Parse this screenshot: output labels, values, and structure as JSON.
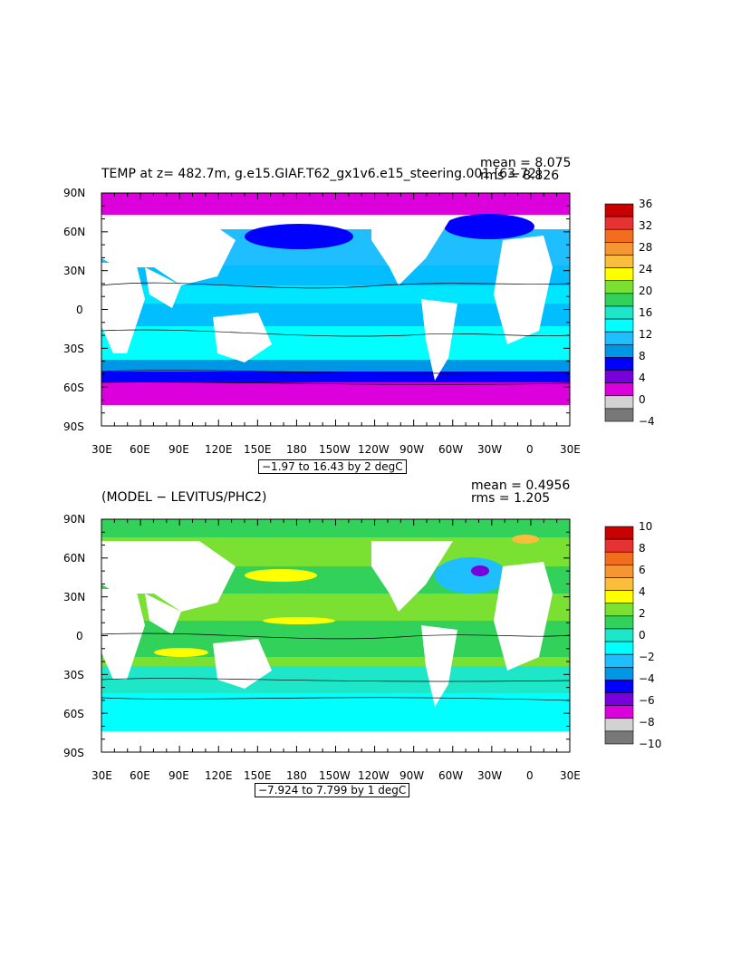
{
  "maps": [
    {
      "title": "TEMP at z= 482.7m, g.e15.GIAF.T62_gx1v6.e15_steering.001 [63-72]",
      "stat_mean": "mean = 8.075",
      "stat_rms": "rms = 8.826",
      "range_label": "−1.97 to 16.43 by 2 degC",
      "lat_labels": [
        "90N",
        "60N",
        "30N",
        "0",
        "30S",
        "60S",
        "90S"
      ],
      "lon_labels": [
        "30E",
        "60E",
        "90E",
        "120E",
        "150E",
        "180",
        "150W",
        "120W",
        "90W",
        "60W",
        "30W",
        "0",
        "30E"
      ],
      "colorbar_labels": [
        "36",
        "32",
        "28",
        "24",
        "20",
        "16",
        "12",
        "8",
        "4",
        "0",
        "−4"
      ],
      "colorbar_colors": [
        "#c80000",
        "#e63232",
        "#f06e1e",
        "#f59632",
        "#fabe3c",
        "#ffff00",
        "#7ae032",
        "#32d25a",
        "#1ee6c8",
        "#00ffff",
        "#1ebeff",
        "#0096e6",
        "#0000ff",
        "#7800dc",
        "#dc00dc",
        "#d2d2d2",
        "#787878"
      ]
    },
    {
      "title": "(MODEL − LEVITUS/PHC2)",
      "stat_mean": "mean = 0.4956",
      "stat_rms": "rms = 1.205",
      "range_label": "−7.924 to 7.799 by 1 degC",
      "lat_labels": [
        "90N",
        "60N",
        "30N",
        "0",
        "30S",
        "60S",
        "90S"
      ],
      "lon_labels": [
        "30E",
        "60E",
        "90E",
        "120E",
        "150E",
        "180",
        "150W",
        "120W",
        "90W",
        "60W",
        "30W",
        "0",
        "30E"
      ],
      "colorbar_labels": [
        "10",
        "8",
        "6",
        "4",
        "2",
        "0",
        "−2",
        "−4",
        "−6",
        "−8",
        "−10"
      ],
      "colorbar_colors": [
        "#c80000",
        "#e63232",
        "#f06e1e",
        "#f59632",
        "#fabe3c",
        "#ffff00",
        "#7ae032",
        "#32d25a",
        "#1ee6c8",
        "#00ffff",
        "#1ebeff",
        "#0096e6",
        "#0000ff",
        "#7800dc",
        "#dc00dc",
        "#d2d2d2",
        "#787878"
      ]
    }
  ],
  "chart_data": [
    {
      "type": "heatmap",
      "title": "TEMP at z= 482.7m, g.e15.GIAF.T62_gx1v6.e15_steering.001 [63-72]",
      "xlim": [
        "30E",
        "30E"
      ],
      "ylim": [
        "90S",
        "90N"
      ],
      "units": "degC",
      "contour_min": -1.97,
      "contour_max": 16.43,
      "contour_interval": 2,
      "mean": 8.075,
      "rms": 8.826
    },
    {
      "type": "heatmap",
      "title": "(MODEL − LEVITUS/PHC2)",
      "xlim": [
        "30E",
        "30E"
      ],
      "ylim": [
        "90S",
        "90N"
      ],
      "units": "degC",
      "contour_min": -7.924,
      "contour_max": 7.799,
      "contour_interval": 1,
      "mean": 0.4956,
      "rms": 1.205
    }
  ]
}
